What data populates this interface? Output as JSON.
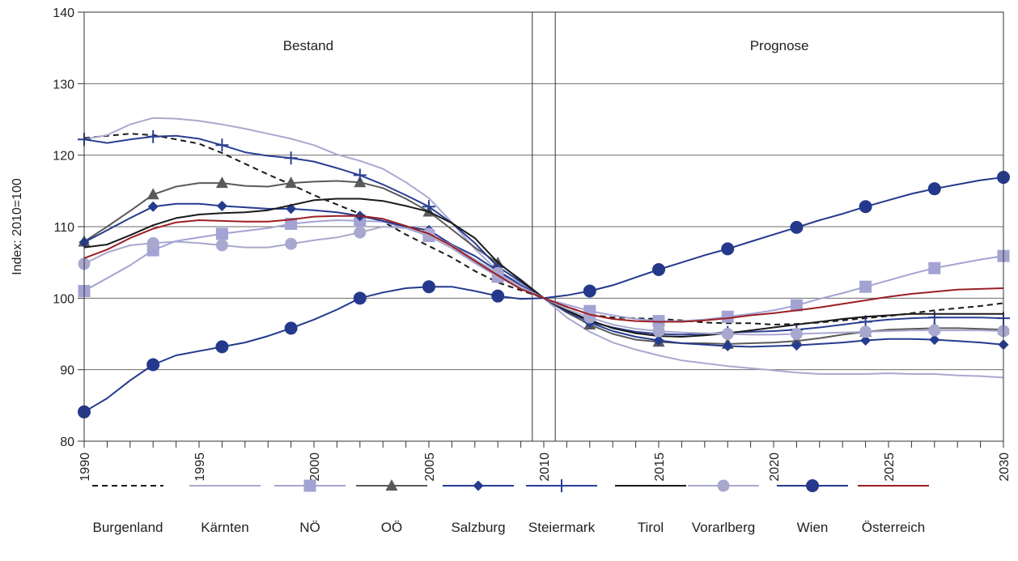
{
  "chart_data": {
    "type": "line",
    "ylabel": "Index: 2010=100",
    "ylim": [
      80,
      140
    ],
    "yticks": [
      80,
      90,
      100,
      110,
      120,
      130,
      140
    ],
    "xlim": [
      1990,
      2030
    ],
    "xticks": [
      1990,
      1995,
      2000,
      2005,
      2010,
      2015,
      2020,
      2025,
      2030
    ],
    "xtick_highlight": 2010,
    "grid": "horizontal",
    "legend_position": "bottom",
    "regions": [
      {
        "label": "Bestand",
        "from": 1990,
        "to": 2009.5
      },
      {
        "label": "Prognose",
        "from": 2010.5,
        "to": 2030
      }
    ],
    "colors": {
      "Burgenland": "#1a1a1a",
      "Kärnten": "#a9a9d0",
      "NÖ": "#a3a3d3",
      "OÖ": "#5a5a5a",
      "Salzburg": "#253b8f",
      "Steiermark": "#2a3f93",
      "Tirol": "#1a1a1a",
      "Vorarlberg": "#a8a8cf",
      "Wien": "#24398c",
      "Österreich": "#9c1f24",
      "highlight": "#3b4f9a"
    },
    "x": [
      1990,
      1991,
      1992,
      1993,
      1994,
      1995,
      1996,
      1997,
      1998,
      1999,
      2000,
      2001,
      2002,
      2003,
      2004,
      2005,
      2006,
      2007,
      2008,
      2009,
      2010,
      2011,
      2012,
      2013,
      2014,
      2015,
      2016,
      2017,
      2018,
      2019,
      2020,
      2021,
      2022,
      2023,
      2024,
      2025,
      2026,
      2027,
      2028,
      2029,
      2030
    ],
    "series": [
      {
        "name": "Burgenland",
        "style": "dashed",
        "marker": "none",
        "values": [
          122.4,
          122.7,
          123.0,
          122.8,
          122.2,
          121.6,
          120.3,
          118.8,
          117.3,
          115.9,
          114.4,
          113.1,
          111.8,
          110.7,
          108.9,
          107.3,
          105.7,
          103.8,
          102.2,
          101.1,
          100,
          98.8,
          97.7,
          97.3,
          97.2,
          97.1,
          96.9,
          96.6,
          96.5,
          96.5,
          96.3,
          96.4,
          96.6,
          96.9,
          97.2,
          97.5,
          97.9,
          98.3,
          98.6,
          98.9,
          99.3
        ]
      },
      {
        "name": "Kärnten",
        "style": "solid",
        "marker": "none",
        "values": [
          122.2,
          122.8,
          124.3,
          125.2,
          125.1,
          124.8,
          124.3,
          123.7,
          123.0,
          122.3,
          121.4,
          120.1,
          119.2,
          118.1,
          116.2,
          114.0,
          110.6,
          106.9,
          103.8,
          102.1,
          100,
          97.3,
          95.3,
          93.8,
          92.8,
          92.0,
          91.3,
          90.9,
          90.5,
          90.2,
          89.9,
          89.6,
          89.4,
          89.4,
          89.4,
          89.5,
          89.4,
          89.4,
          89.2,
          89.1,
          88.9
        ]
      },
      {
        "name": "NÖ",
        "style": "solid",
        "marker": "square",
        "values": [
          101.0,
          102.8,
          104.6,
          106.7,
          108.0,
          108.5,
          109.0,
          109.4,
          109.8,
          110.4,
          110.7,
          110.9,
          110.8,
          110.7,
          109.8,
          108.7,
          107.0,
          104.9,
          103.0,
          101.3,
          100,
          99.1,
          98.2,
          97.6,
          97.1,
          96.8,
          96.8,
          97.0,
          97.4,
          97.8,
          98.3,
          99.0,
          99.9,
          100.7,
          101.6,
          102.5,
          103.4,
          104.2,
          104.8,
          105.4,
          105.9
        ]
      },
      {
        "name": "OÖ",
        "style": "solid",
        "marker": "triangle",
        "values": [
          107.9,
          110.0,
          112.2,
          114.5,
          115.6,
          116.1,
          116.1,
          115.7,
          115.6,
          116.1,
          116.3,
          116.4,
          116.2,
          115.4,
          113.9,
          112.1,
          109.6,
          107.1,
          104.9,
          102.6,
          100,
          98.0,
          96.3,
          95.0,
          94.2,
          93.9,
          93.7,
          93.7,
          93.6,
          93.7,
          93.8,
          94.0,
          94.4,
          94.9,
          95.3,
          95.6,
          95.7,
          95.8,
          95.8,
          95.7,
          95.6
        ]
      },
      {
        "name": "Salzburg",
        "style": "solid",
        "marker": "diamond",
        "values": [
          107.8,
          109.5,
          111.2,
          112.8,
          113.2,
          113.2,
          112.9,
          112.7,
          112.5,
          112.5,
          112.3,
          112.0,
          111.5,
          110.8,
          110.0,
          109.5,
          107.5,
          105.9,
          103.8,
          101.8,
          100,
          98.3,
          96.6,
          95.4,
          94.6,
          94.1,
          93.7,
          93.5,
          93.3,
          93.2,
          93.3,
          93.4,
          93.6,
          93.8,
          94.1,
          94.3,
          94.3,
          94.2,
          94.0,
          93.8,
          93.5
        ]
      },
      {
        "name": "Steiermark",
        "style": "solid",
        "marker": "plus",
        "values": [
          122.2,
          121.7,
          122.2,
          122.6,
          122.7,
          122.3,
          121.4,
          120.4,
          119.9,
          119.6,
          119.1,
          118.2,
          117.2,
          115.9,
          114.4,
          112.8,
          110.5,
          107.7,
          104.4,
          102.3,
          100,
          98.1,
          96.7,
          95.9,
          95.3,
          95.0,
          94.9,
          95.0,
          95.2,
          95.3,
          95.4,
          95.6,
          95.9,
          96.3,
          96.7,
          97.0,
          97.2,
          97.3,
          97.3,
          97.3,
          97.2
        ]
      },
      {
        "name": "Tirol",
        "style": "solid",
        "marker": "none",
        "values": [
          107.1,
          107.5,
          108.8,
          110.2,
          111.2,
          111.7,
          111.9,
          112.0,
          112.3,
          113.0,
          113.7,
          113.9,
          113.9,
          113.6,
          112.9,
          112.1,
          110.5,
          108.4,
          105.0,
          102.5,
          100,
          98.3,
          96.9,
          95.8,
          95.1,
          94.7,
          94.6,
          94.8,
          95.1,
          95.5,
          95.9,
          96.3,
          96.7,
          97.1,
          97.4,
          97.6,
          97.8,
          97.8,
          97.8,
          97.8,
          97.8
        ]
      },
      {
        "name": "Vorarlberg",
        "style": "solid",
        "marker": "circle",
        "values": [
          104.8,
          106.4,
          107.4,
          107.7,
          107.9,
          107.7,
          107.4,
          107.1,
          107.1,
          107.6,
          108.1,
          108.5,
          109.2,
          110.0,
          109.8,
          109.0,
          107.4,
          105.4,
          103.5,
          101.6,
          100,
          98.5,
          97.3,
          96.3,
          95.7,
          95.4,
          95.2,
          95.1,
          95.0,
          94.9,
          94.9,
          95.0,
          95.1,
          95.2,
          95.3,
          95.4,
          95.5,
          95.5,
          95.5,
          95.5,
          95.4
        ]
      },
      {
        "name": "Wien",
        "style": "solid",
        "marker": "circle-large",
        "values": [
          84.1,
          86.0,
          88.5,
          90.7,
          92.0,
          92.6,
          93.2,
          93.8,
          94.7,
          95.8,
          97.0,
          98.4,
          100.0,
          100.8,
          101.4,
          101.6,
          101.6,
          101.0,
          100.3,
          99.9,
          100,
          100.4,
          101.0,
          101.8,
          102.9,
          104.0,
          105.0,
          106.0,
          106.9,
          107.9,
          108.9,
          109.9,
          110.9,
          111.8,
          112.8,
          113.7,
          114.6,
          115.3,
          115.9,
          116.5,
          116.9
        ]
      },
      {
        "name": "Österreich",
        "style": "solid",
        "marker": "none",
        "values": [
          105.6,
          106.8,
          108.4,
          109.7,
          110.6,
          110.9,
          110.8,
          110.7,
          110.7,
          111.0,
          111.4,
          111.5,
          111.5,
          111.1,
          110.1,
          109.0,
          107.3,
          105.2,
          103.2,
          101.3,
          100,
          98.8,
          97.7,
          97.1,
          96.8,
          96.7,
          96.7,
          96.9,
          97.2,
          97.6,
          97.9,
          98.3,
          98.7,
          99.2,
          99.7,
          100.2,
          100.6,
          100.9,
          101.2,
          101.3,
          101.4
        ]
      }
    ]
  }
}
